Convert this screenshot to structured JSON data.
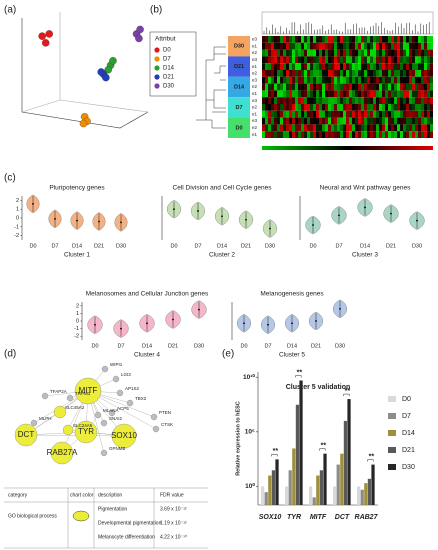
{
  "panel_labels": [
    "(a)",
    "(b)",
    "(c)",
    "(d)",
    "(e)"
  ],
  "pca": {
    "legend_title": "Attribut",
    "series": [
      {
        "name": "D0",
        "color": "#e31a1c",
        "x": [
          12,
          18,
          15
        ],
        "y": [
          82,
          84,
          76
        ]
      },
      {
        "name": "D7",
        "color": "#f08c00",
        "x": [
          48,
          50,
          47
        ],
        "y": [
          10,
          6,
          4
        ]
      },
      {
        "name": "D14",
        "color": "#2ca02c",
        "x": [
          70,
          72,
          68
        ],
        "y": [
          56,
          60,
          52
        ]
      },
      {
        "name": "D21",
        "color": "#1f3fbf",
        "x": [
          64,
          66,
          62
        ],
        "y": [
          48,
          45,
          50
        ]
      },
      {
        "name": "D30",
        "color": "#7b3fa8",
        "x": [
          92,
          95,
          94
        ],
        "y": [
          84,
          88,
          80
        ]
      }
    ]
  },
  "heatmap": {
    "groups": [
      {
        "name": "D30",
        "color": "#f4a460",
        "rows": [
          "e3",
          "e1",
          "e2"
        ]
      },
      {
        "name": "D21",
        "color": "#3f5fe0",
        "rows": [
          "e3",
          "e1",
          "e2"
        ]
      },
      {
        "name": "D14",
        "color": "#35a8e6",
        "rows": [
          "e3",
          "e2",
          "e1"
        ]
      },
      {
        "name": "D7",
        "color": "#3fe0d0",
        "rows": [
          "e3",
          "e2",
          "e1"
        ]
      },
      {
        "name": "D0",
        "color": "#45e06a",
        "rows": [
          "e3",
          "e2",
          "e1"
        ]
      }
    ]
  },
  "violins": {
    "ylim": [
      -2.5,
      2.5
    ],
    "yticks": [
      2,
      1,
      0,
      -1,
      -2
    ],
    "categories": [
      "D0",
      "D7",
      "D14",
      "D21",
      "D30"
    ],
    "panels": [
      {
        "title": "Pluripotency genes",
        "cluster": "Cluster 1",
        "color": "#f4b183",
        "values": [
          1.6,
          -0.1,
          -0.3,
          -0.4,
          -0.5
        ]
      },
      {
        "title": "Cell Division and Cell Cycle genes",
        "cluster": "Cluster 2",
        "color": "#c5e0b4",
        "values": [
          1.0,
          0.8,
          0.2,
          -0.2,
          -1.2
        ]
      },
      {
        "title": "Neural and Wnt pathway  genes",
        "cluster": "Cluster 3",
        "color": "#a9d5c5",
        "values": [
          -0.8,
          0.3,
          1.2,
          0.5,
          -0.3
        ]
      },
      {
        "title": "Melanosomes and Cellular Junction genes",
        "cluster": "Cluster 4",
        "color": "#f4b6c8",
        "values": [
          -0.5,
          -1.0,
          -0.3,
          0.2,
          1.5
        ]
      },
      {
        "title": "Melanogenesis genes",
        "cluster": "Cluster 5",
        "color": "#b4c7e7",
        "values": [
          -0.3,
          -0.5,
          -0.3,
          0.0,
          1.6
        ]
      }
    ]
  },
  "network": {
    "nodes": [
      {
        "label": "MITF",
        "color": "#ecec3a"
      },
      {
        "label": "TYR",
        "color": "#ecec3a"
      },
      {
        "label": "DCT",
        "color": "#ecec3a"
      },
      {
        "label": "SOX10",
        "color": "#ecec3a"
      },
      {
        "label": "RAB27A",
        "color": "#ecec3a"
      },
      {
        "label": "SLC45A2",
        "color": "#ecec3a"
      },
      {
        "label": "SLC24A5",
        "color": "#ecec3a"
      },
      {
        "label": "TRPM1",
        "color": "#bdbdbd"
      },
      {
        "label": "TFAP2A",
        "color": "#bdbdbd"
      },
      {
        "label": "WIPI1",
        "color": "#bdbdbd"
      },
      {
        "label": "LGI3",
        "color": "#bdbdbd"
      },
      {
        "label": "AP1S2",
        "color": "#bdbdbd"
      },
      {
        "label": "TBX2",
        "color": "#bdbdbd"
      },
      {
        "label": "ACP5",
        "color": "#bdbdbd"
      },
      {
        "label": "SNAI2",
        "color": "#bdbdbd"
      },
      {
        "label": "PTEN",
        "color": "#bdbdbd"
      },
      {
        "label": "CTSK",
        "color": "#bdbdbd"
      },
      {
        "label": "MLANA",
        "color": "#bdbdbd"
      },
      {
        "label": "GPNMB",
        "color": "#bdbdbd"
      },
      {
        "label": "MLPH",
        "color": "#bdbdbd"
      }
    ]
  },
  "table": {
    "headers": [
      "category",
      "chart color",
      "description",
      "FDR value"
    ],
    "category": "GO biological process",
    "rows": [
      [
        "Pigmentation",
        "3.69 x 10⁻¹²"
      ],
      [
        "Developmental pigmentation",
        "1.19 x 10⁻¹²"
      ],
      [
        "Melanocyte differentiation",
        "4.22 x 10⁻¹⁰"
      ]
    ]
  },
  "chart_data": {
    "type": "bar",
    "title": "Cluster 5 validation",
    "y_label": "Relative expression to hESC",
    "log_scale": true,
    "categories": [
      "SOX10",
      "TYR",
      "MITF",
      "DCT",
      "RAB27"
    ],
    "series": [
      {
        "name": "D0",
        "color": "#d9d9d9",
        "values": [
          1,
          1,
          1,
          1,
          1
        ]
      },
      {
        "name": "D7",
        "color": "#8c8c8c",
        "values": [
          0.3,
          30,
          0.1,
          100,
          0.5
        ]
      },
      {
        "name": "D14",
        "color": "#9e8f3a",
        "values": [
          10,
          3000,
          10,
          1000,
          2
        ]
      },
      {
        "name": "D21",
        "color": "#595959",
        "values": [
          30,
          30000000,
          30,
          1000000,
          5
        ]
      },
      {
        "name": "D30",
        "color": "#262626",
        "values": [
          300,
          5000000000,
          1000,
          100000000,
          100
        ]
      }
    ],
    "annotations": [
      "**",
      "**",
      "**",
      "**",
      "**"
    ],
    "ylim": [
      0.02,
      30000000000
    ],
    "yticks": [
      {
        "value": 1,
        "label": "10⁰"
      },
      {
        "value": 100000,
        "label": "10⁵"
      },
      {
        "value": 10000000000,
        "label": "10¹⁰"
      }
    ],
    "legend": "right"
  }
}
